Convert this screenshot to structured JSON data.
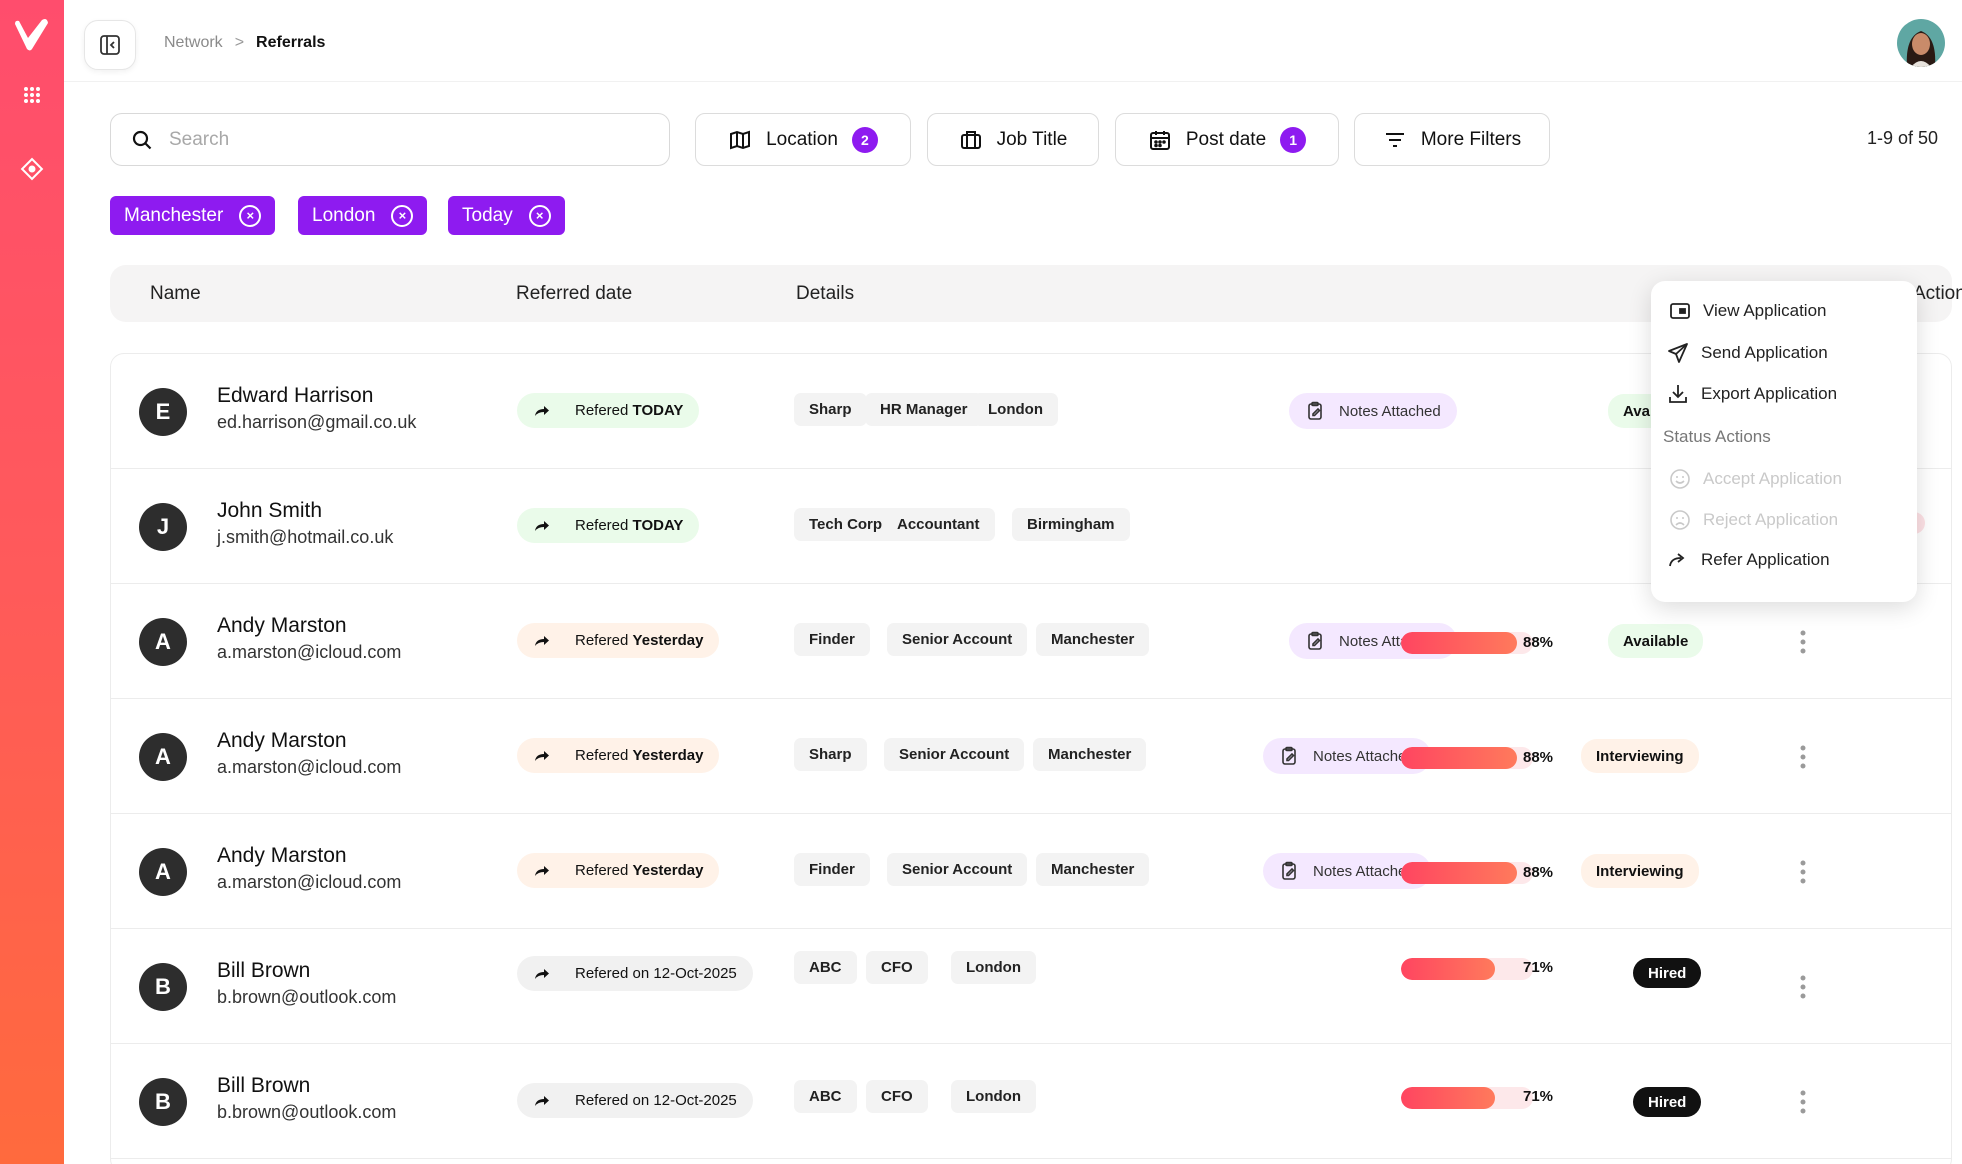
{
  "colors": {
    "accent": "#8e1bf0",
    "rail_top": "#ff4d6d",
    "rail_bottom": "#ff6a3d",
    "progress": "#ff4560"
  },
  "rail": {
    "icons": [
      "logo-v",
      "grid-icon",
      "diamond-icon"
    ]
  },
  "breadcrumb": {
    "parent": "Network",
    "separator": ">",
    "current": "Referrals"
  },
  "search": {
    "placeholder": "Search",
    "value": ""
  },
  "filters": {
    "location": {
      "label": "Location",
      "count": "2"
    },
    "job_title": {
      "label": "Job Title"
    },
    "post_date": {
      "label": "Post date",
      "count": "1"
    },
    "more": {
      "label": "More Filters"
    }
  },
  "results": "1-9 of 50",
  "chips": [
    {
      "label": "Manchester",
      "close": "×"
    },
    {
      "label": "London",
      "close": "×"
    },
    {
      "label": "Today",
      "close": "×"
    }
  ],
  "table": {
    "headers": {
      "name": "Name",
      "referred_date": "Referred date",
      "details": "Details",
      "actions": "Actions"
    },
    "rows": [
      {
        "initial": "E",
        "name": "Edward Harrison",
        "email": "ed.harrison@gmail.co.uk",
        "ref_prefix": "Refered",
        "ref_suffix": "TODAY",
        "ref_kind": "today",
        "tags": [
          "Sharp",
          "HR Manager",
          "London"
        ],
        "notes": "Notes Attached",
        "status": "Avai",
        "status_kind": "available",
        "progress": null,
        "pct": null
      },
      {
        "initial": "J",
        "name": "John Smith",
        "email": "j.smith@hotmail.co.uk",
        "ref_prefix": "Refered",
        "ref_suffix": "TODAY",
        "ref_kind": "today",
        "tags": [
          "Tech Corp",
          "Accountant",
          "Birmingham"
        ],
        "notes": null,
        "status": null,
        "progress": null,
        "pct": null
      },
      {
        "initial": "A",
        "name": "Andy Marston",
        "email": "a.marston@icloud.com",
        "ref_prefix": "Refered",
        "ref_suffix": "Yesterday",
        "ref_kind": "yesterday",
        "tags": [
          "Finder",
          "Senior Account",
          "Manchester"
        ],
        "notes": "Notes Attached",
        "status": "Available",
        "status_kind": "available",
        "progress": 0.88,
        "pct": "88%"
      },
      {
        "initial": "A",
        "name": "Andy Marston",
        "email": "a.marston@icloud.com",
        "ref_prefix": "Refered",
        "ref_suffix": "Yesterday",
        "ref_kind": "yesterday",
        "tags": [
          "Sharp",
          "Senior Account",
          "Manchester"
        ],
        "notes": "Notes Attached",
        "status": "Interviewing",
        "status_kind": "interviewing",
        "progress": 0.88,
        "pct": "88%"
      },
      {
        "initial": "A",
        "name": "Andy Marston",
        "email": "a.marston@icloud.com",
        "ref_prefix": "Refered",
        "ref_suffix": "Yesterday",
        "ref_kind": "yesterday",
        "tags": [
          "Finder",
          "Senior Account",
          "Manchester"
        ],
        "notes": "Notes Attached",
        "status": "Interviewing",
        "status_kind": "interviewing",
        "progress": 0.88,
        "pct": "88%"
      },
      {
        "initial": "B",
        "name": "Bill Brown",
        "email": "b.brown@outlook.com",
        "ref_prefix": "Refered on",
        "ref_suffix": "12-Oct-2025",
        "ref_kind": "date",
        "tags": [
          "ABC",
          "CFO",
          "London"
        ],
        "notes": null,
        "status": "Hired",
        "status_kind": "hired",
        "progress": 0.71,
        "pct": "71%"
      },
      {
        "initial": "B",
        "name": "Bill Brown",
        "email": "b.brown@outlook.com",
        "ref_prefix": "Refered on",
        "ref_suffix": "12-Oct-2025",
        "ref_kind": "date",
        "tags": [
          "ABC",
          "CFO",
          "London"
        ],
        "notes": null,
        "status": "Hired",
        "status_kind": "hired",
        "progress": 0.71,
        "pct": "71%"
      }
    ]
  },
  "menu": {
    "items": [
      {
        "label": "View Application",
        "icon": "view-icon",
        "disabled": false
      },
      {
        "label": "Send Application",
        "icon": "send-icon",
        "disabled": false
      },
      {
        "label": "Export Application",
        "icon": "download-icon",
        "disabled": false
      }
    ],
    "section": "Status Actions",
    "status_items": [
      {
        "label": "Accept Application",
        "icon": "smile-icon",
        "disabled": true
      },
      {
        "label": "Reject Application",
        "icon": "frown-icon",
        "disabled": true
      },
      {
        "label": "Refer Application",
        "icon": "share-arrow-icon",
        "disabled": false
      }
    ]
  }
}
